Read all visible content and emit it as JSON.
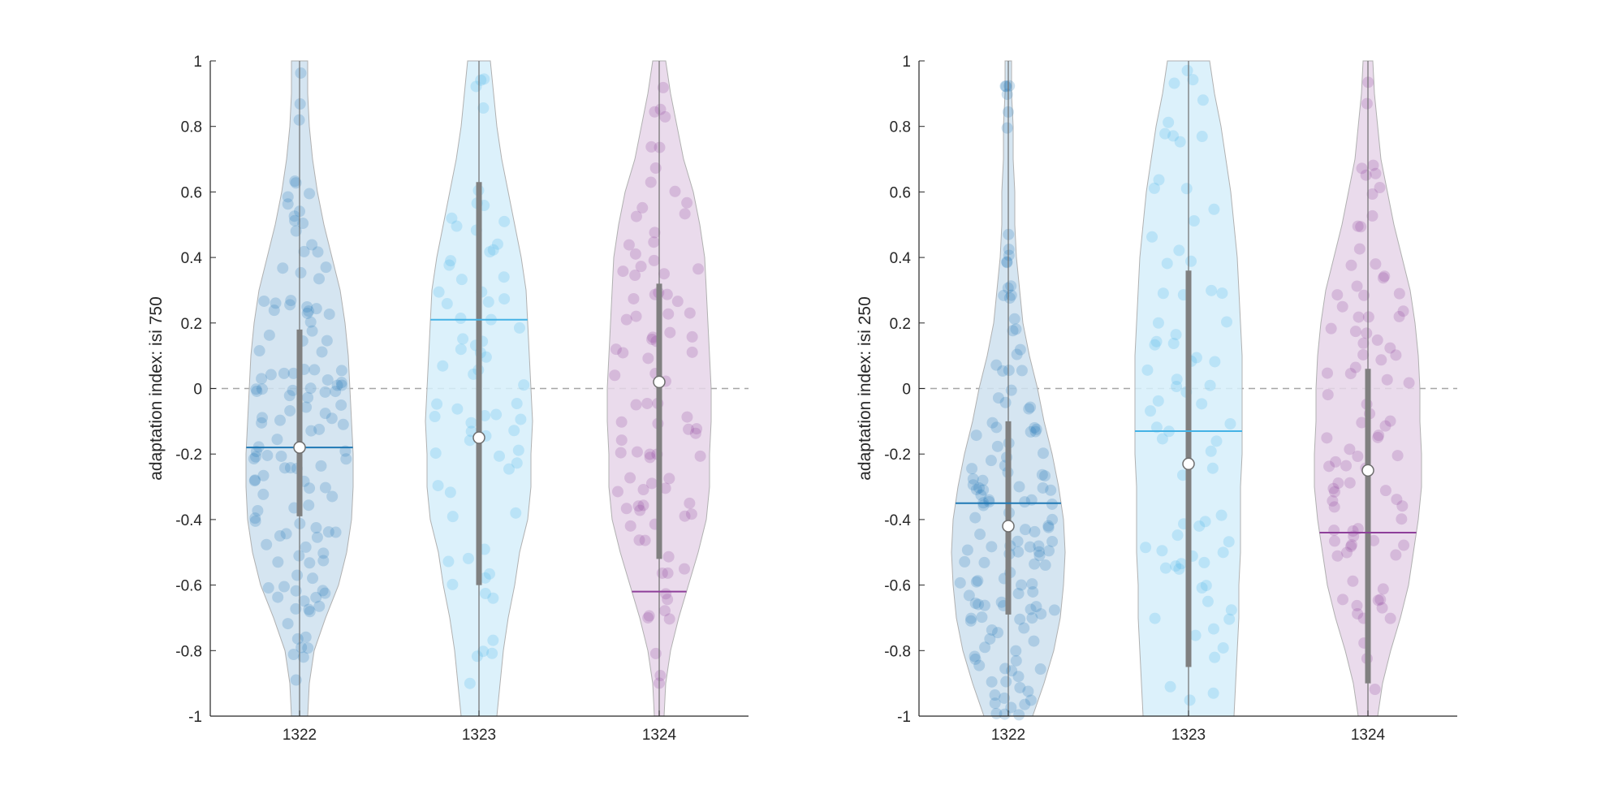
{
  "chart_data": [
    {
      "type": "violin",
      "ylabel": "adaptation index: isi 750",
      "ylim": [
        -1,
        1
      ],
      "yticks": [
        "-1",
        "-0.8",
        "-0.6",
        "-0.4",
        "-0.2",
        "0",
        "0.2",
        "0.4",
        "0.6",
        "0.8",
        "1"
      ],
      "categories": [
        "1322",
        "1323",
        "1324"
      ],
      "reference_line": 0,
      "groups": [
        {
          "category": "1322",
          "color": "#1f78b4",
          "median": -0.18,
          "mean": -0.18,
          "q1": -0.39,
          "q3": 0.18,
          "n_points": 130
        },
        {
          "category": "1323",
          "color": "#45b3e6",
          "median": -0.15,
          "mean": 0.21,
          "q1": -0.6,
          "q3": 0.63,
          "n_points": 70
        },
        {
          "category": "1324",
          "color": "#8e3f9a",
          "median": 0.02,
          "mean": -0.62,
          "q1": -0.52,
          "q3": 0.32,
          "n_points": 90
        }
      ]
    },
    {
      "type": "violin",
      "ylabel": "adaptation index: isi 250",
      "ylim": [
        -1,
        1
      ],
      "yticks": [
        "-1",
        "-0.8",
        "-0.6",
        "-0.4",
        "-0.2",
        "0",
        "0.2",
        "0.4",
        "0.6",
        "0.8",
        "1"
      ],
      "categories": [
        "1322",
        "1323",
        "1324"
      ],
      "reference_line": 0,
      "groups": [
        {
          "category": "1322",
          "color": "#1f78b4",
          "median": -0.42,
          "mean": -0.35,
          "q1": -0.69,
          "q3": -0.1,
          "n_points": 140
        },
        {
          "category": "1323",
          "color": "#45b3e6",
          "median": -0.23,
          "mean": -0.13,
          "q1": -0.85,
          "q3": 0.36,
          "n_points": 75
        },
        {
          "category": "1324",
          "color": "#8e3f9a",
          "median": -0.25,
          "mean": -0.44,
          "q1": -0.9,
          "q3": 0.06,
          "n_points": 90
        }
      ]
    }
  ]
}
